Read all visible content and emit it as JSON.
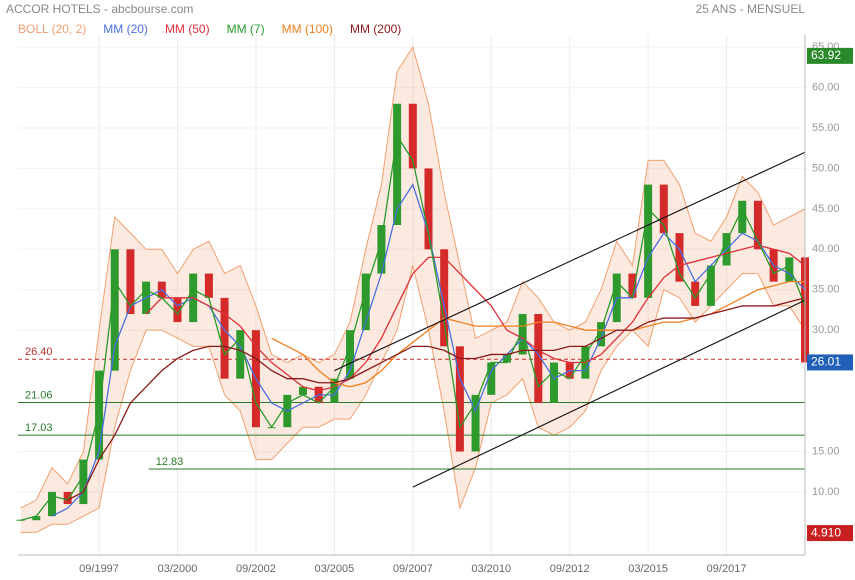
{
  "chart_data": {
    "type": "candlestick",
    "title": "ACCOR HOTELS - abcbourse.com",
    "period": "25 ANS - MENSUEL",
    "x": [
      "03/1995",
      "09/1995",
      "03/1996",
      "09/1996",
      "03/1997",
      "09/1997",
      "03/1998",
      "09/1998",
      "03/1999",
      "09/1999",
      "03/2000",
      "09/2000",
      "03/2001",
      "09/2001",
      "03/2002",
      "09/2002",
      "03/2003",
      "09/2003",
      "03/2004",
      "09/2004",
      "03/2005",
      "09/2005",
      "03/2006",
      "09/2006",
      "03/2007",
      "09/2007",
      "03/2008",
      "09/2008",
      "03/2009",
      "09/2009",
      "03/2010",
      "09/2010",
      "03/2011",
      "09/2011",
      "03/2012",
      "09/2012",
      "03/2013",
      "09/2013",
      "03/2014",
      "09/2014",
      "03/2015",
      "09/2015",
      "03/2016",
      "09/2016",
      "03/2017",
      "09/2017",
      "03/2018",
      "09/2018",
      "03/2019",
      "09/2019",
      "03/2020"
    ],
    "values": [
      6.5,
      7,
      10,
      8.5,
      14,
      25,
      40,
      32,
      36,
      34,
      31,
      37,
      34,
      24,
      30,
      18,
      18,
      22,
      23,
      21,
      24,
      30,
      37,
      43,
      58,
      50,
      40,
      28,
      15,
      22,
      26,
      27,
      32,
      21,
      26,
      24,
      28,
      31,
      37,
      34,
      48,
      42,
      36,
      33,
      38,
      42,
      46,
      40,
      36,
      39,
      26.01
    ],
    "up_color": "#2e9a2e",
    "down_color": "#d42a2a",
    "bands": [
      {
        "name": "BOLL (20, 2)",
        "color": "#f0a070",
        "upper": [
          8,
          9,
          13,
          11,
          15,
          30,
          44,
          42,
          40,
          40,
          37,
          40,
          41,
          37,
          38,
          33,
          27,
          26,
          27,
          26,
          27,
          31,
          40,
          48,
          62,
          65,
          58,
          47,
          38,
          29,
          30,
          31,
          36,
          34,
          31,
          30,
          31,
          35,
          41,
          38,
          51,
          51,
          48,
          42,
          41,
          44,
          49,
          47,
          43,
          44,
          45
        ],
        "lower": [
          5,
          5,
          6,
          6,
          7,
          8,
          18,
          25,
          30,
          30,
          29,
          28,
          28,
          22,
          20,
          14,
          14,
          16,
          18,
          18,
          19,
          19,
          22,
          26,
          30,
          38,
          30,
          20,
          8,
          13,
          21,
          22,
          24,
          18,
          17,
          18,
          20,
          25,
          28,
          30,
          28,
          35,
          34,
          31,
          33,
          35,
          37,
          37,
          33,
          33,
          30
        ]
      }
    ],
    "series": [
      {
        "name": "MM (20)",
        "color": "#4a6fe0",
        "values": [
          null,
          null,
          7,
          8,
          10,
          15,
          28,
          33,
          34,
          35,
          33,
          34,
          33,
          30,
          28,
          24,
          21,
          20,
          21,
          22,
          22,
          25,
          31,
          37,
          45,
          48,
          42,
          33,
          24,
          20,
          25,
          27,
          29,
          27,
          24,
          25,
          25,
          29,
          34,
          34,
          39,
          42,
          40,
          36,
          38,
          40,
          42,
          41,
          38,
          37,
          35
        ]
      },
      {
        "name": "MM (50)",
        "color": "#e0303a",
        "values": [
          null,
          null,
          null,
          null,
          null,
          null,
          null,
          null,
          32,
          34,
          34,
          34,
          33,
          32,
          30.5,
          28,
          26,
          24.5,
          23,
          22.5,
          23,
          24,
          26,
          29,
          33,
          37,
          39,
          39,
          37,
          35,
          33,
          30,
          29,
          27.5,
          26.5,
          26,
          26,
          27,
          29,
          31,
          34,
          36.5,
          38,
          38.5,
          39,
          39.5,
          40,
          40.5,
          40,
          39.5,
          38
        ]
      },
      {
        "name": "MM (7)",
        "color": "#2a9a2a",
        "values": [
          6.5,
          7,
          9.5,
          9,
          12,
          20,
          36,
          33,
          35,
          34,
          32,
          35,
          34,
          27,
          29,
          21,
          18,
          21,
          22,
          21,
          23,
          28,
          35,
          41,
          54,
          51,
          42,
          31,
          18,
          21,
          26,
          26,
          30,
          23,
          25,
          24,
          27,
          30,
          36,
          34,
          45,
          43,
          37,
          34,
          37,
          41,
          45,
          41,
          37,
          38,
          33
        ]
      },
      {
        "name": "MM (100)",
        "color": "#f08020",
        "values": [
          null,
          null,
          null,
          null,
          null,
          null,
          null,
          null,
          null,
          null,
          null,
          null,
          null,
          null,
          null,
          null,
          29,
          28,
          27,
          25,
          23.5,
          23,
          23.5,
          25,
          27,
          28.5,
          30,
          31.5,
          31,
          30.5,
          30.5,
          30.5,
          30.5,
          31,
          31,
          30.5,
          30,
          30,
          30,
          30,
          30.5,
          31,
          31,
          31.5,
          32,
          33,
          34,
          35,
          35.5,
          36,
          36
        ]
      },
      {
        "name": "MM (200)",
        "color": "#8b1a1a",
        "values": [
          null,
          null,
          null,
          9,
          10,
          14,
          17,
          21,
          23,
          25,
          26.5,
          27.5,
          28,
          28,
          27.5,
          26.5,
          25,
          24,
          24,
          23.5,
          23.5,
          24,
          25,
          26,
          27,
          28,
          28,
          27.5,
          26.5,
          26.5,
          27,
          27,
          27.5,
          27.5,
          27.5,
          28,
          28,
          29,
          30,
          30,
          31,
          31.5,
          31.5,
          31.5,
          32,
          32.5,
          33,
          33,
          33,
          33.5,
          34
        ]
      }
    ],
    "trendlines": [
      {
        "x": [
          "03/2005",
          "03/2020"
        ],
        "values": [
          25,
          52
        ]
      },
      {
        "x": [
          "09/2007",
          "03/2020"
        ],
        "values": [
          10.6,
          33.7
        ]
      }
    ],
    "levels": [
      {
        "value": 26.4,
        "label": "26.40",
        "color": "#c03030",
        "dashed": true
      },
      {
        "value": 21.06,
        "label": "21.06",
        "color": "#2a7a2a",
        "dashed": false
      },
      {
        "value": 17.03,
        "label": "17.03",
        "color": "#2a7a2a",
        "dashed": false
      },
      {
        "value": 12.83,
        "label": "12.83",
        "color": "#2a7a2a",
        "dashed": false,
        "start": "04/1999"
      }
    ],
    "price_tags": [
      {
        "value": 63.92,
        "label": "63.92",
        "color": "#2a8a2a"
      },
      {
        "value": 26.01,
        "label": "26.01",
        "color": "#1f5fb8"
      },
      {
        "value": 4.91,
        "label": "4.910",
        "color": "#c82020"
      }
    ],
    "xlim": [
      "02/1995",
      "03/2020"
    ],
    "xticks": [
      "09/1997",
      "03/2000",
      "09/2002",
      "03/2005",
      "09/2007",
      "03/2010",
      "09/2012",
      "03/2015",
      "09/2017"
    ],
    "ylim": [
      2.2,
      66.5
    ],
    "yticks": [
      {
        "value": 10,
        "label": "10.00"
      },
      {
        "value": 15,
        "label": "15.00"
      },
      {
        "value": 30,
        "label": "30.00"
      },
      {
        "value": 35,
        "label": "35.00"
      },
      {
        "value": 40,
        "label": "40.00"
      },
      {
        "value": 45,
        "label": "45.00"
      },
      {
        "value": 50,
        "label": "50.00"
      },
      {
        "value": 55,
        "label": "55.00"
      },
      {
        "value": 60,
        "label": "60.00"
      },
      {
        "value": 65,
        "label": "65.00"
      }
    ],
    "grid": true
  }
}
